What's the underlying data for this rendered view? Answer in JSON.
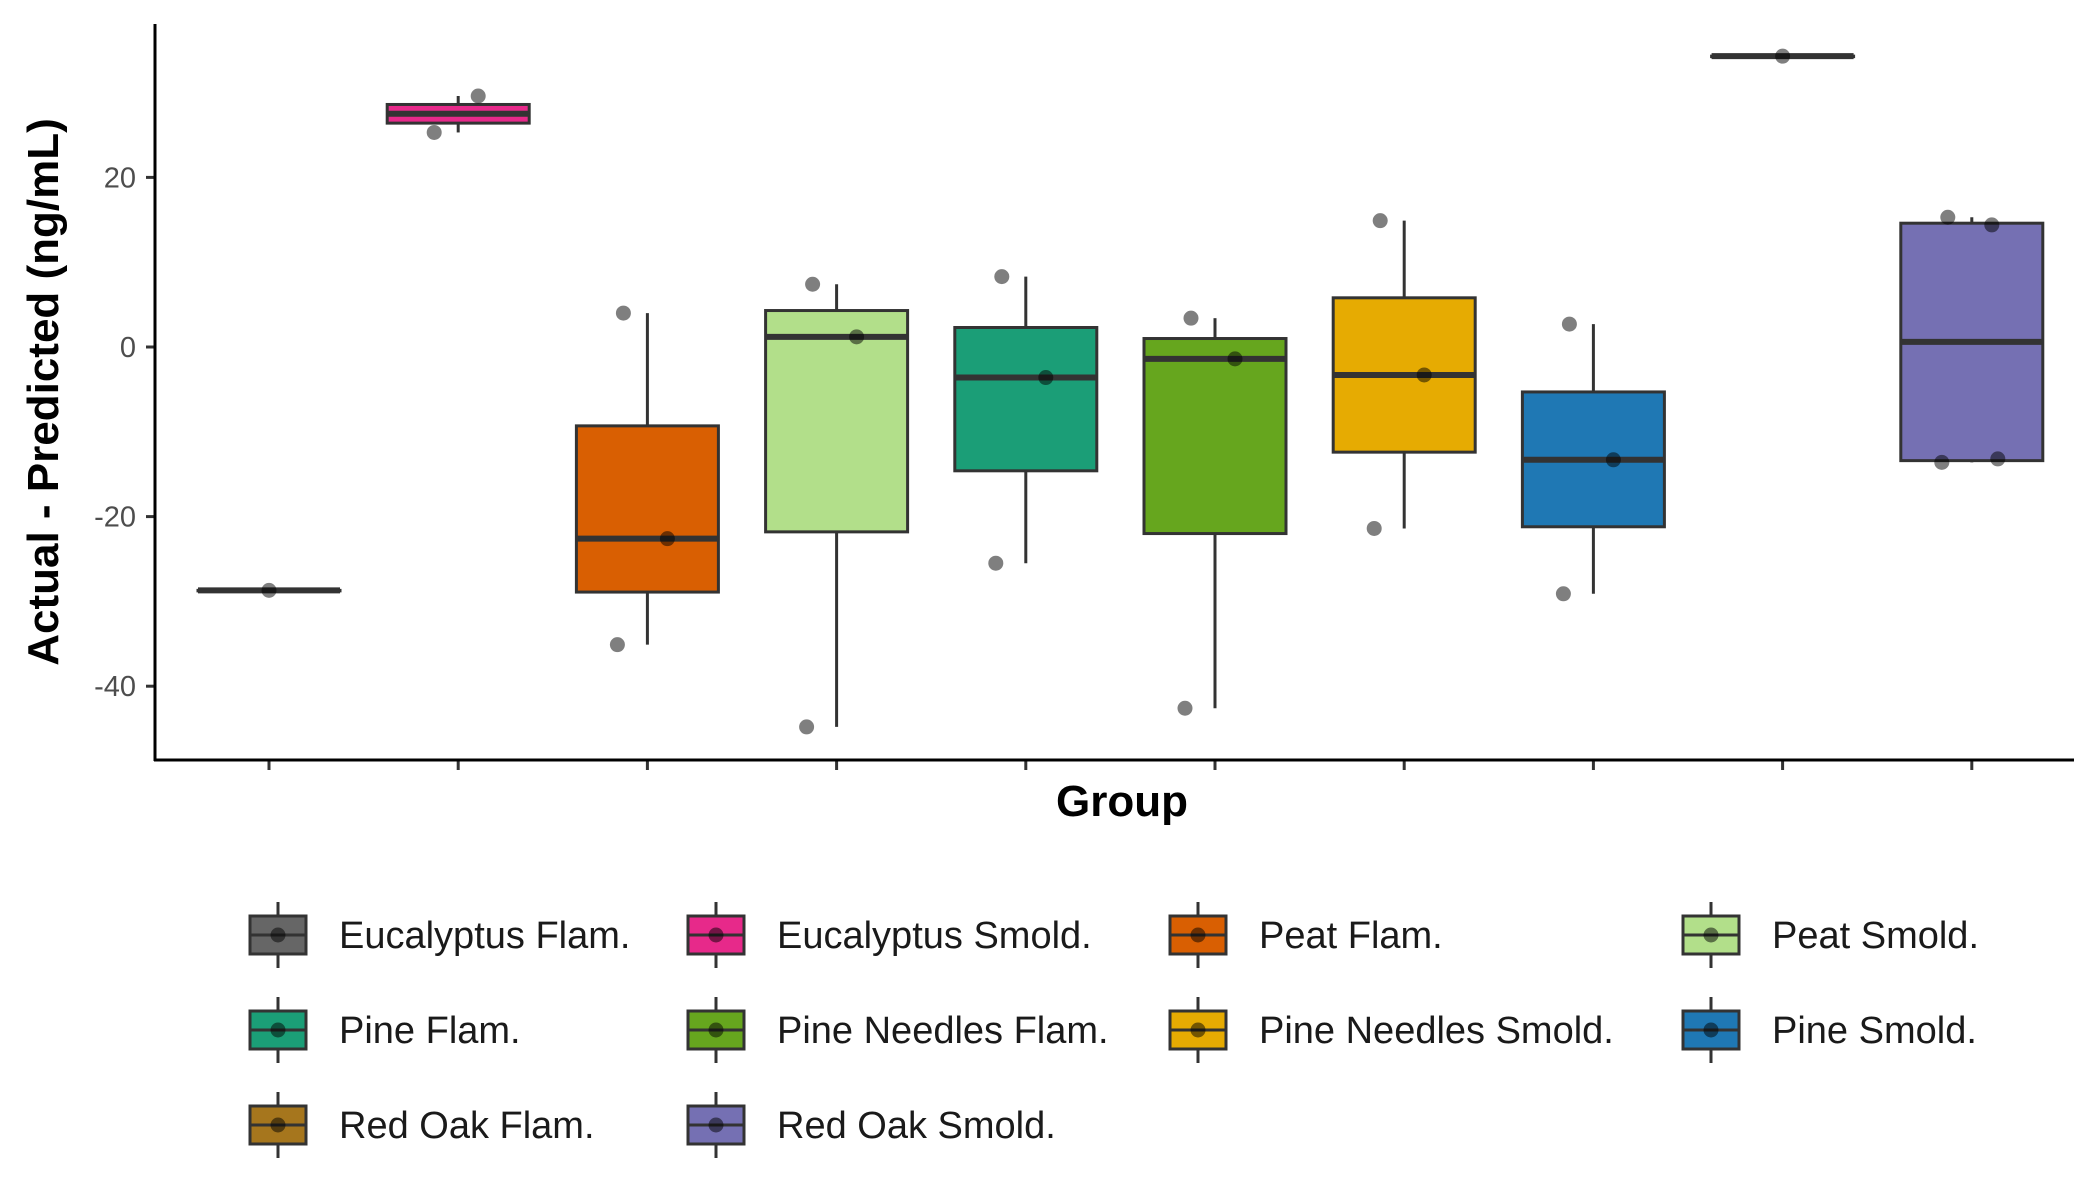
{
  "chart_data": {
    "type": "box",
    "xlabel": "Group",
    "ylabel": "Actual - Predicted (ng/mL)",
    "ylim": [
      -48.5,
      38
    ],
    "y_ticks": [
      20,
      0,
      -20,
      -40
    ],
    "grid": false,
    "legend_position": "bottom",
    "categories": [
      "Eucalyptus Flam.",
      "Eucalyptus Smold.",
      "Peat Flam.",
      "Peat Smold.",
      "Pine Flam.",
      "Pine Needles Flam.",
      "Pine Needles Smold.",
      "Pine Smold.",
      "Red Oak Flam.",
      "Red Oak Smold."
    ],
    "series": [
      {
        "name": "Eucalyptus Flam.",
        "color": "#666666",
        "min": -28.7,
        "q1": -28.7,
        "median": -28.7,
        "q3": -28.7,
        "max": -28.7,
        "points": [
          -28.7
        ]
      },
      {
        "name": "Eucalyptus Smold.",
        "color": "#E7298A",
        "min": 25.3,
        "q1": 26.4,
        "median": 27.5,
        "q3": 28.6,
        "max": 29.6,
        "points": [
          25.3,
          29.6
        ]
      },
      {
        "name": "Peat Flam.",
        "color": "#D95F02",
        "min": -35.1,
        "q1": -28.9,
        "median": -22.6,
        "q3": -9.3,
        "max": 4.0,
        "points": [
          4.0,
          -22.6,
          -35.1
        ]
      },
      {
        "name": "Peat Smold.",
        "color": "#B2DF8A",
        "min": -44.8,
        "q1": -21.8,
        "median": 1.2,
        "q3": 4.3,
        "max": 7.4,
        "points": [
          7.4,
          1.2,
          -44.8
        ]
      },
      {
        "name": "Pine Flam.",
        "color": "#1B9E77",
        "min": -25.5,
        "q1": -14.6,
        "median": -3.6,
        "q3": 2.3,
        "max": 8.3,
        "points": [
          8.3,
          -3.6,
          -25.5
        ]
      },
      {
        "name": "Pine Needles Flam.",
        "color": "#66A61E",
        "min": -42.6,
        "q1": -22.0,
        "median": -1.4,
        "q3": 1.0,
        "max": 3.4,
        "points": [
          3.4,
          -1.4,
          -42.6
        ]
      },
      {
        "name": "Pine Needles Smold.",
        "color": "#E6AB02",
        "min": -21.4,
        "q1": -12.4,
        "median": -3.3,
        "q3": 5.8,
        "max": 14.9,
        "points": [
          14.9,
          -3.3,
          -21.4
        ]
      },
      {
        "name": "Pine Smold.",
        "color": "#1F78B4",
        "min": -29.1,
        "q1": -21.2,
        "median": -13.3,
        "q3": -5.3,
        "max": 2.7,
        "points": [
          2.7,
          -13.3,
          -29.1
        ]
      },
      {
        "name": "Red Oak Flam.",
        "color": "#A6761D",
        "min": 34.3,
        "q1": 34.3,
        "median": 34.3,
        "q3": 34.3,
        "max": 34.3,
        "points": [
          34.3
        ]
      },
      {
        "name": "Red Oak Smold.",
        "color": "#7570B3",
        "min": -13.6,
        "q1": -13.4,
        "median": 0.6,
        "q3": 14.6,
        "max": 15.3,
        "points": [
          15.3,
          14.4,
          -13.6,
          -13.2
        ]
      }
    ]
  }
}
